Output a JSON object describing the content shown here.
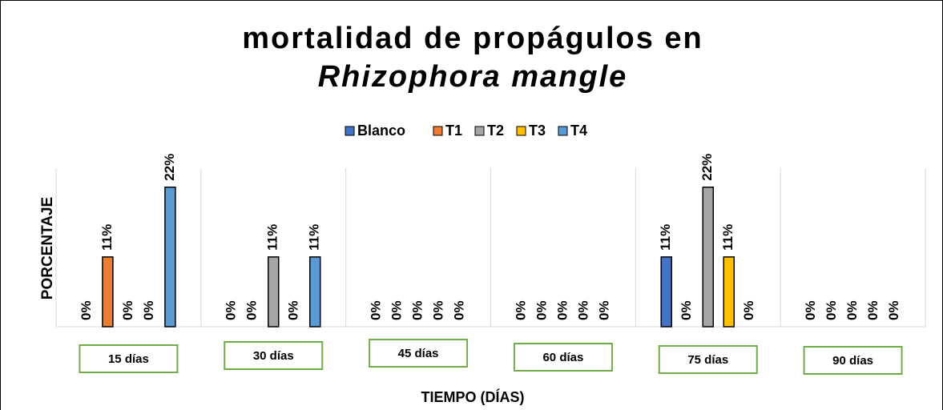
{
  "chart_data": {
    "type": "bar",
    "title": [
      "mortalidad de propágulos en",
      "Rhizophora mangle"
    ],
    "x_label": "TIEMPO (DÍAS)",
    "y_label": "PORCENTAJE",
    "categories": [
      "15 días",
      "30 días",
      "45 días",
      "60 días",
      "75 días",
      "90 días"
    ],
    "series": [
      {
        "name": "Blanco",
        "color": "#4472c4",
        "values": [
          0,
          0,
          0,
          0,
          11,
          0
        ],
        "value_labels": [
          "0%",
          "0%",
          "0%",
          "0%",
          "11%",
          "0%"
        ]
      },
      {
        "name": "T1",
        "color": "#ed7d31",
        "values": [
          11,
          0,
          0,
          0,
          0,
          0
        ],
        "value_labels": [
          "11%",
          "0%",
          "0%",
          "0%",
          "0%",
          "0%"
        ]
      },
      {
        "name": "T2",
        "color": "#a5a5a5",
        "values": [
          0,
          11,
          0,
          0,
          22,
          0
        ],
        "value_labels": [
          "0%",
          "11%",
          "0%",
          "0%",
          "22%",
          "0%"
        ]
      },
      {
        "name": "T3",
        "color": "#ffc000",
        "values": [
          0,
          0,
          0,
          0,
          11,
          0
        ],
        "value_labels": [
          "0%",
          "0%",
          "0%",
          "0%",
          "11%",
          "0%"
        ]
      },
      {
        "name": "T4",
        "color": "#5b9bd5",
        "values": [
          22,
          11,
          0,
          0,
          0,
          0
        ],
        "value_labels": [
          "22%",
          "11%",
          "0%",
          "0%",
          "0%",
          "0%"
        ]
      }
    ],
    "ylim": [
      0,
      25
    ],
    "legend": "top",
    "grid": true
  }
}
